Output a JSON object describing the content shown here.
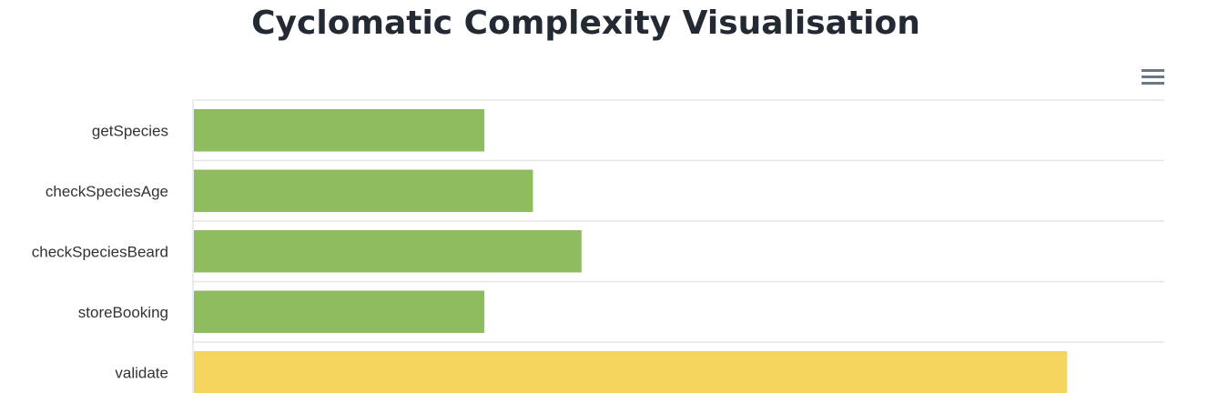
{
  "chart_data": {
    "type": "bar",
    "orientation": "horizontal",
    "title": "Cyclomatic Complexity Visualisation",
    "categories": [
      "getSpecies",
      "checkSpeciesAge",
      "checkSpeciesBeard",
      "storeBooking",
      "validate"
    ],
    "values": [
      6,
      7,
      8,
      6,
      18
    ],
    "colors": [
      "#8fbc5f",
      "#8fbc5f",
      "#8fbc5f",
      "#8fbc5f",
      "#f5d55e"
    ],
    "xlim": [
      0,
      20
    ],
    "grid": true,
    "legend": "none"
  },
  "menu": {
    "icon": "hamburger-menu-icon"
  }
}
